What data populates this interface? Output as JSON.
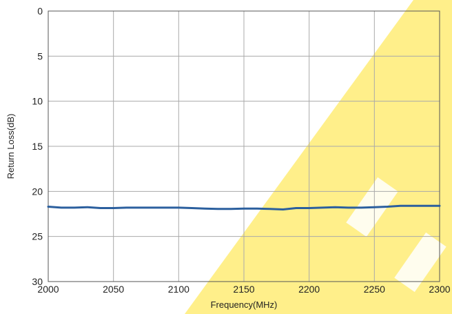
{
  "chart_data": {
    "type": "line",
    "xlabel": "Frequency(MHz)",
    "ylabel": "Return Loss(dB)",
    "xlim": [
      2000,
      2300
    ],
    "ylim": [
      0,
      30
    ],
    "y_inverted": true,
    "grid": true,
    "x_ticks": [
      "2000",
      "2050",
      "2100",
      "2150",
      "2200",
      "2250",
      "2300"
    ],
    "y_ticks": [
      "0",
      "5",
      "10",
      "15",
      "20",
      "25",
      "30"
    ],
    "series": [
      {
        "color": "#2b5f9e",
        "x": [
          2000,
          2010,
          2020,
          2030,
          2040,
          2050,
          2060,
          2070,
          2080,
          2090,
          2100,
          2110,
          2120,
          2130,
          2140,
          2150,
          2160,
          2170,
          2180,
          2190,
          2200,
          2210,
          2220,
          2230,
          2240,
          2250,
          2260,
          2270,
          2280,
          2290,
          2300
        ],
        "y": [
          21.7,
          21.8,
          21.8,
          21.75,
          21.85,
          21.85,
          21.8,
          21.8,
          21.8,
          21.8,
          21.8,
          21.85,
          21.9,
          21.95,
          21.95,
          21.9,
          21.9,
          21.95,
          22.0,
          21.85,
          21.85,
          21.8,
          21.75,
          21.8,
          21.8,
          21.75,
          21.7,
          21.6,
          21.6,
          21.6,
          21.6
        ]
      }
    ]
  },
  "colors": {
    "grid": "#a9a9a9",
    "axis": "#555555",
    "watermark": "#ffef8a",
    "watermark_text": "#ffffff"
  }
}
